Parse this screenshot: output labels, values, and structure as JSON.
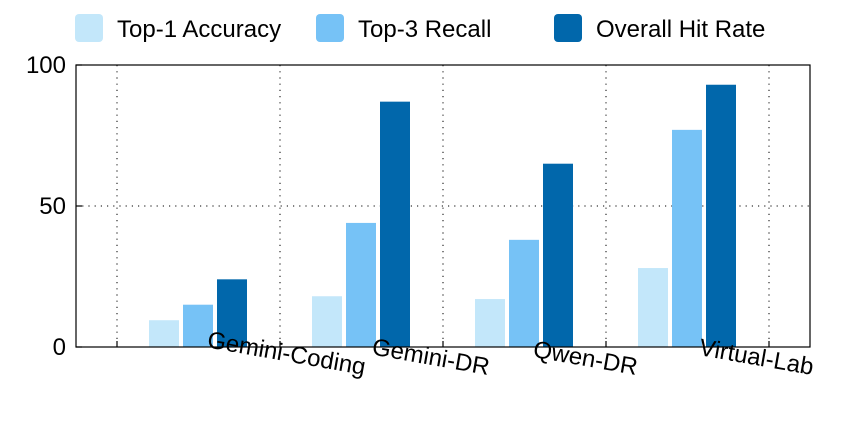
{
  "chart_data": {
    "type": "bar",
    "title": "",
    "xlabel": "",
    "ylabel": "",
    "ylim": [
      0,
      100
    ],
    "yticks": [
      0,
      50,
      100
    ],
    "grid": true,
    "legend_position": "top",
    "categories": [
      "Gemini-Coding",
      "Gemini-DR",
      "Qwen-DR",
      "Virtual-Lab"
    ],
    "series": [
      {
        "name": "Top-1 Accuracy",
        "color": "#c3e7fa",
        "values": [
          9.5,
          18,
          17,
          28
        ]
      },
      {
        "name": "Top-3 Recall",
        "color": "#76c2f6",
        "values": [
          15,
          44,
          38,
          77
        ]
      },
      {
        "name": "Overall Hit Rate",
        "color": "#0167ab",
        "values": [
          24,
          87,
          65,
          93
        ]
      }
    ]
  }
}
